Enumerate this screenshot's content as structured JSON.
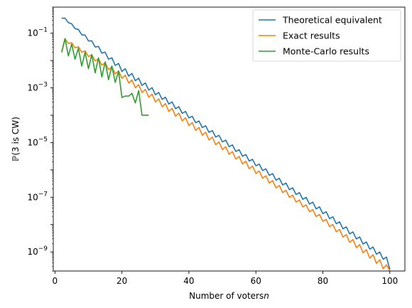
{
  "chart_data": {
    "type": "line",
    "title": "",
    "xlabel": "Number of voters",
    "xlabel_var": "n",
    "ylabel": "ℙ(3 is CW)",
    "xlim": [
      -0.5,
      104.5
    ],
    "ylim": [
      2e-10,
      0.9
    ],
    "yscale": "log",
    "grid": false,
    "legend_position": "top-right",
    "x_ticks": [
      0,
      20,
      40,
      60,
      80,
      100
    ],
    "x_tick_labels": [
      "0",
      "20",
      "40",
      "60",
      "80",
      "100"
    ],
    "y_ticks": [
      1e-09,
      1e-07,
      1e-05,
      0.001,
      0.1
    ],
    "y_tick_labels": [
      {
        "base": "10",
        "exp": "−9"
      },
      {
        "base": "10",
        "exp": "−7"
      },
      {
        "base": "10",
        "exp": "−5"
      },
      {
        "base": "10",
        "exp": "−3"
      },
      {
        "base": "10",
        "exp": "−1"
      }
    ],
    "series": [
      {
        "name": "Theoretical equivalent",
        "color": "#1f77b4",
        "x_start": 2,
        "x_end": 100,
        "odd_log10": [
          -0.5,
          -0.45,
          -2.21,
          -3.95,
          -5.7,
          -7.44,
          -9.19,
          -9.64
        ],
        "even_log10": [
          -0.45,
          -0.5,
          -2.4,
          -4.1,
          -5.85,
          -7.6,
          -9.36,
          -9.64
        ],
        "anchors_x": [
          2,
          3,
          20,
          40,
          60,
          80,
          99,
          100
        ]
      },
      {
        "name": "Exact results",
        "color": "#ff7f0e",
        "x_start": 2,
        "x_end": 100,
        "odd_log10": [
          -1.7,
          -1.2,
          -2.45,
          -4.18,
          -5.95,
          -7.72,
          -9.47,
          -9.7
        ],
        "even_log10": [
          -1.7,
          -1.3,
          -2.65,
          -4.38,
          -6.13,
          -7.88,
          -9.71,
          -9.7
        ],
        "anchors_x": [
          2,
          3,
          20,
          40,
          60,
          80,
          99,
          100
        ]
      },
      {
        "name": "Monte-Carlo results",
        "color": "#2ca02c",
        "x": [
          2,
          3,
          4,
          5,
          6,
          7,
          8,
          9,
          10,
          11,
          12,
          13,
          14,
          15,
          16,
          17,
          18,
          19,
          20,
          21,
          22,
          23,
          24,
          25,
          26,
          27,
          28
        ],
        "y_log10": [
          -1.7,
          -1.2,
          -1.83,
          -1.4,
          -1.95,
          -1.55,
          -2.2,
          -1.7,
          -2.3,
          -1.78,
          -2.45,
          -1.9,
          -2.6,
          -2.05,
          -2.7,
          -2.2,
          -2.8,
          -2.4,
          -3.35,
          -3.3,
          -3.3,
          -3.2,
          -3.55,
          -3.1,
          -4.0,
          -4.0,
          -4.0
        ]
      }
    ]
  }
}
